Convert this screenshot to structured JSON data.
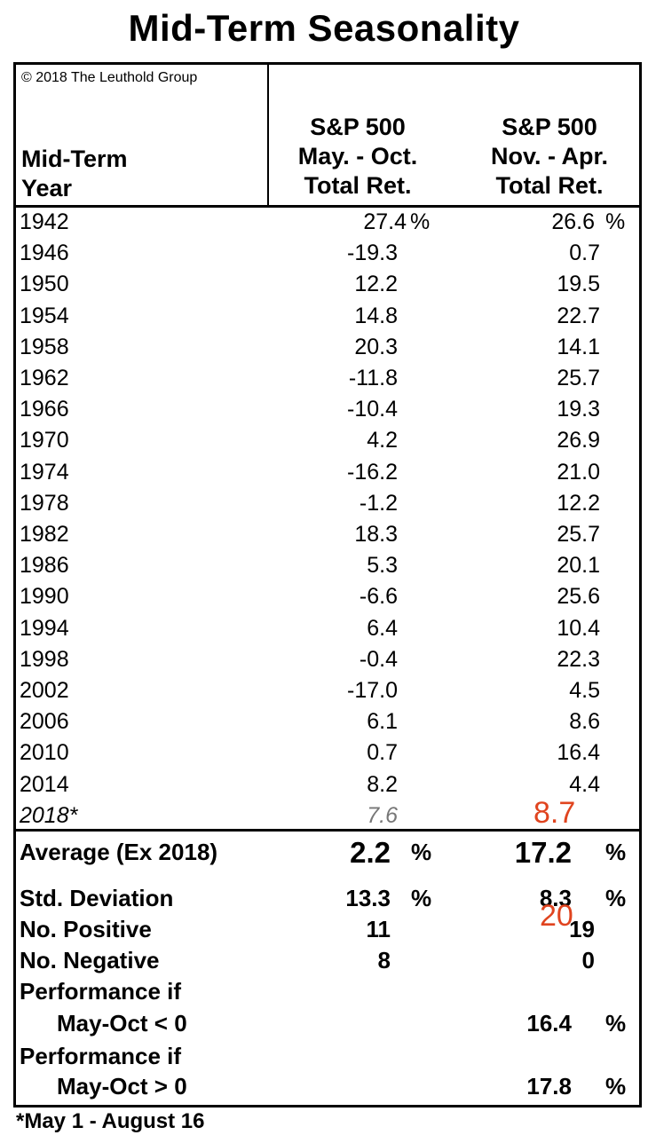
{
  "title": "Mid-Term Seasonality",
  "copyright": "© 2018 The Leuthold Group",
  "headers": {
    "col1": [
      "Mid-Term",
      "Year"
    ],
    "col2": [
      "S&P 500",
      "May. - Oct.",
      "Total Ret."
    ],
    "col3": [
      "S&P 500",
      "Nov. - Apr.",
      "Total Ret."
    ]
  },
  "chart_data": {
    "type": "table",
    "title": "Mid-Term Seasonality",
    "columns": [
      "Mid-Term Year",
      "S&P 500 May. - Oct. Total Ret.",
      "S&P 500 Nov. - Apr. Total Ret."
    ],
    "rows": [
      {
        "year": "1942",
        "may_oct": "27.4",
        "nov_apr": "26.6"
      },
      {
        "year": "1946",
        "may_oct": "-19.3",
        "nov_apr": "0.7"
      },
      {
        "year": "1950",
        "may_oct": "12.2",
        "nov_apr": "19.5"
      },
      {
        "year": "1954",
        "may_oct": "14.8",
        "nov_apr": "22.7"
      },
      {
        "year": "1958",
        "may_oct": "20.3",
        "nov_apr": "14.1"
      },
      {
        "year": "1962",
        "may_oct": "-11.8",
        "nov_apr": "25.7"
      },
      {
        "year": "1966",
        "may_oct": "-10.4",
        "nov_apr": "19.3"
      },
      {
        "year": "1970",
        "may_oct": "4.2",
        "nov_apr": "26.9"
      },
      {
        "year": "1974",
        "may_oct": "-16.2",
        "nov_apr": "21.0"
      },
      {
        "year": "1978",
        "may_oct": "-1.2",
        "nov_apr": "12.2"
      },
      {
        "year": "1982",
        "may_oct": "18.3",
        "nov_apr": "25.7"
      },
      {
        "year": "1986",
        "may_oct": "5.3",
        "nov_apr": "20.1"
      },
      {
        "year": "1990",
        "may_oct": "-6.6",
        "nov_apr": "25.6"
      },
      {
        "year": "1994",
        "may_oct": "6.4",
        "nov_apr": "10.4"
      },
      {
        "year": "1998",
        "may_oct": "-0.4",
        "nov_apr": "22.3"
      },
      {
        "year": "2002",
        "may_oct": "-17.0",
        "nov_apr": "4.5"
      },
      {
        "year": "2006",
        "may_oct": "6.1",
        "nov_apr": "8.6"
      },
      {
        "year": "2010",
        "may_oct": "0.7",
        "nov_apr": "16.4"
      },
      {
        "year": "2014",
        "may_oct": "8.2",
        "nov_apr": "4.4"
      },
      {
        "year": "2018*",
        "may_oct": "7.6",
        "nov_apr": ""
      }
    ],
    "percent_sign": "%",
    "stats": {
      "average": {
        "label": "Average (Ex 2018)",
        "may_oct": "2.2",
        "nov_apr": "17.2"
      },
      "std_dev": {
        "label": "Std. Deviation",
        "may_oct": "13.3",
        "nov_apr": "8.3"
      },
      "positive": {
        "label": "No. Positive",
        "may_oct": "11",
        "nov_apr": "19"
      },
      "negative": {
        "label": "No. Negative",
        "may_oct": "8",
        "nov_apr": "0"
      },
      "perf_neg": {
        "label1": "Performance if",
        "label2": "May-Oct < 0",
        "nov_apr": "16.4"
      },
      "perf_pos": {
        "label1": "Performance if",
        "label2": "May-Oct > 0",
        "nov_apr": "17.8"
      }
    }
  },
  "annotations": {
    "a1": "8.7",
    "a2": "20"
  },
  "footnote": "*May 1 - August 16",
  "colors": {
    "annotation": "#e0441f",
    "italic_value": "#777777"
  }
}
